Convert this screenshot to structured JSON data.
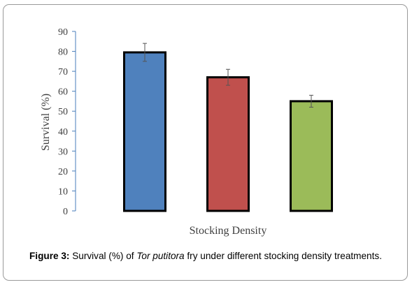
{
  "figure": {
    "caption_label": "Figure 3:",
    "caption_pre": "Survival (%) of",
    "caption_species": "Tor putitora",
    "caption_post": "fry under different stocking density treatments."
  },
  "chart_data": {
    "type": "bar",
    "title": "",
    "xlabel": "Stocking Density",
    "ylabel": "Survival (%)",
    "ylim": [
      0,
      90
    ],
    "yticks": [
      0,
      10,
      20,
      30,
      40,
      50,
      60,
      70,
      80,
      90
    ],
    "grid": false,
    "legend": "none",
    "categories": [
      "",
      "",
      ""
    ],
    "values": [
      79.5,
      67,
      55
    ],
    "errors": [
      4.5,
      4,
      3
    ],
    "colors": [
      "#4f81bd",
      "#c0504d",
      "#9bbb59"
    ]
  }
}
